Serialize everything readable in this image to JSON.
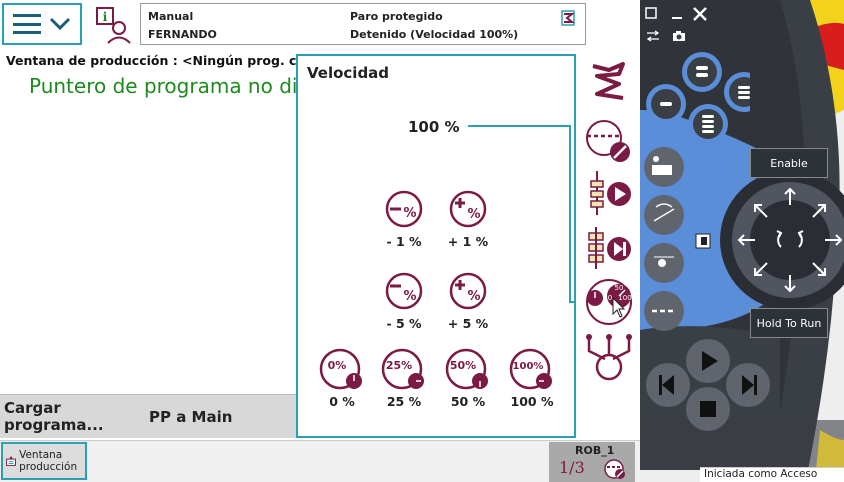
{
  "header": {
    "mode": "Manual",
    "user": "FERNANDO",
    "state": "Paro protegido",
    "speed_state": "Detenido (Velocidad 100%)"
  },
  "production": {
    "window_title": "Ventana de producción : <Ningún prog. c",
    "pointer_message": "Puntero de programa no disp",
    "load_program": "Cargar programa...",
    "pp_to_main": "PP a Main"
  },
  "velocity": {
    "title": "Velocidad",
    "current": "100 %",
    "buttons": [
      {
        "label": "- 1 %",
        "icon": "minus-percent-icon"
      },
      {
        "label": "+ 1 %",
        "icon": "plus-percent-icon"
      },
      {
        "label": "- 5 %",
        "icon": "minus-percent-icon"
      },
      {
        "label": "+ 5 %",
        "icon": "plus-percent-icon"
      },
      {
        "label": "0 %",
        "icon": "speed-0-icon",
        "glyph": "0%"
      },
      {
        "label": "25 %",
        "icon": "speed-25-icon",
        "glyph": "25%"
      },
      {
        "label": "50 %",
        "icon": "speed-50-icon",
        "glyph": "50%"
      },
      {
        "label": "100 %",
        "icon": "speed-100-icon",
        "glyph": "100%"
      }
    ]
  },
  "taskbar": {
    "production_window": "Ventana producción",
    "robot": "ROB_1",
    "fraction": "1/3"
  },
  "pendant": {
    "enable": "Enable",
    "hold_to_run": "Hold To Run",
    "status": "Iniciada como  Acceso"
  },
  "colors": {
    "accent": "#2aa0b0",
    "icon": "#7a1a45",
    "pointer_text": "#1e8a1e",
    "pendant_body": "#3a3e45",
    "pendant_blue": "#5a8ed8",
    "pendant_yellow": "#f2d21a",
    "pendant_red": "#d91c1c"
  }
}
